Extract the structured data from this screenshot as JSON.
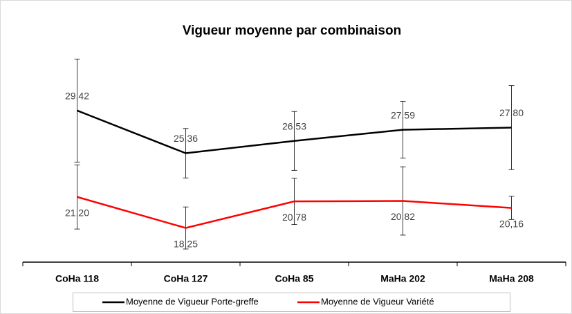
{
  "chart_data": {
    "type": "line",
    "title": "Vigueur moyenne par combinaison",
    "categories": [
      "CoHa 118",
      "CoHa 127",
      "CoHa 85",
      "MaHa 202",
      "MaHa 208"
    ],
    "ylim": [
      15,
      35
    ],
    "series": [
      {
        "name": "Moyenne de Vigueur Porte-greffe",
        "color": "#000000",
        "values": [
          29.42,
          25.36,
          26.53,
          27.59,
          27.8
        ],
        "value_labels": [
          "29,42",
          "25,36",
          "26,53",
          "27,59",
          "27,80"
        ],
        "errors": [
          4.9,
          2.35,
          2.8,
          2.7,
          4.0
        ],
        "label_position": "above"
      },
      {
        "name": "Moyenne de Vigueur Variété",
        "color": "#ff0000",
        "values": [
          21.2,
          18.25,
          20.78,
          20.82,
          20.16
        ],
        "value_labels": [
          "21,20",
          "18,25",
          "20,78",
          "20,82",
          "20,16"
        ],
        "errors": [
          3.05,
          2.0,
          2.2,
          3.25,
          1.1
        ],
        "label_position": "below"
      }
    ],
    "legend": "bottom"
  }
}
